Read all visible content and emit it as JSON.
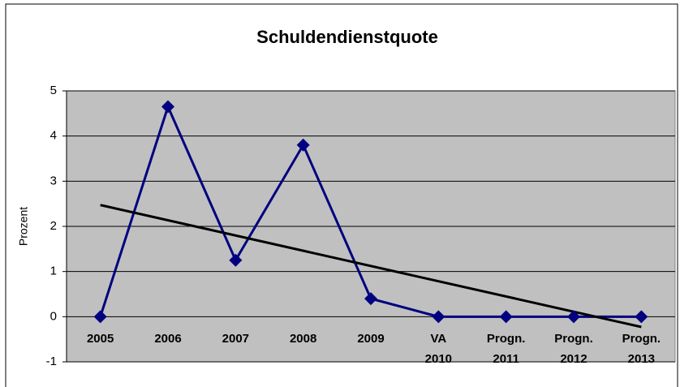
{
  "chart_data": {
    "type": "line",
    "title": "Schuldendienstquote",
    "y_label": "Prozent",
    "categories": [
      "2005",
      "2006",
      "2007",
      "2008",
      "2009",
      "VA\n2010",
      "Progn.\n2011",
      "Progn.\n2012",
      "Progn.\n2013"
    ],
    "series": [
      {
        "name": null,
        "color": "#000080",
        "values": [
          0,
          4.65,
          1.25,
          3.8,
          0.4,
          0,
          0,
          0,
          0
        ]
      }
    ],
    "trendline": "linear",
    "trendline_color": "#000000",
    "ylim": [
      -1,
      5
    ],
    "yticks": [
      -1,
      0,
      1,
      2,
      3,
      4,
      5
    ],
    "grid": true,
    "plot_background": "#c0c0c0"
  }
}
